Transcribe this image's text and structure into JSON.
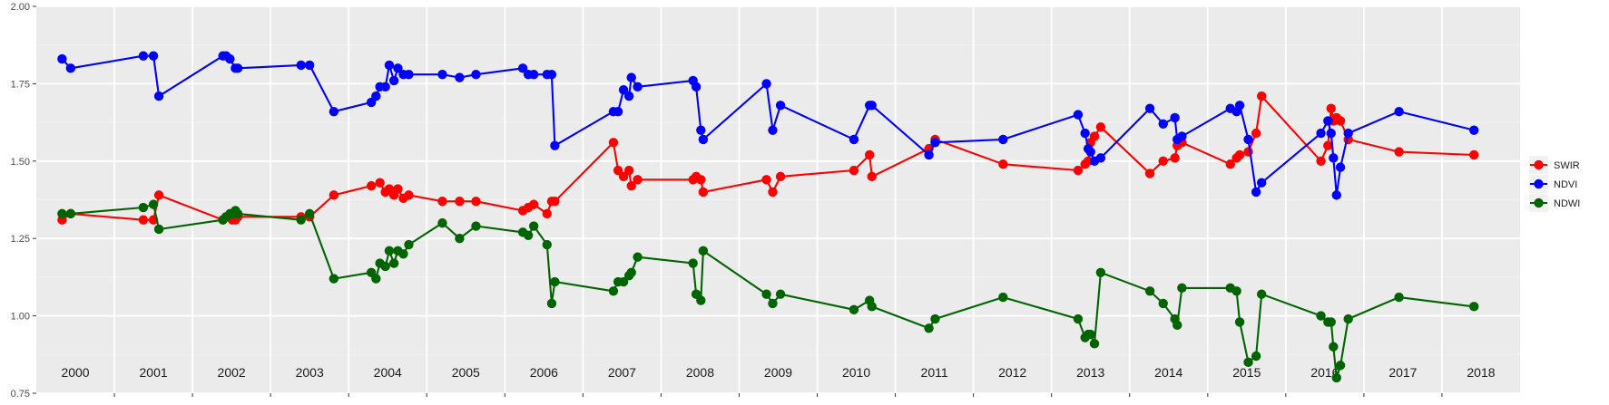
{
  "chart_data": {
    "type": "line",
    "title": "",
    "xlabel": "",
    "ylabel": "",
    "x_range": [
      2000.0,
      2019.0
    ],
    "ylim": [
      0.75,
      2.0
    ],
    "y_ticks": [
      "0.75",
      "1.00",
      "1.25",
      "1.50",
      "1.75",
      "2.00"
    ],
    "year_labels": [
      "2000",
      "2001",
      "2002",
      "2003",
      "2004",
      "2005",
      "2006",
      "2007",
      "2008",
      "2009",
      "2010",
      "2011",
      "2012",
      "2013",
      "2014",
      "2015",
      "2016",
      "2017",
      "2018"
    ],
    "grid": true,
    "legend_position": "right",
    "colors": {
      "panel_bg": "#ebebeb",
      "grid_major": "#ffffff",
      "grid_minor": "#f2f2f2",
      "tick_text": "#4d4d4d"
    },
    "series": [
      {
        "name": "SWIR",
        "color": "#ff0000",
        "x": [
          2000.33,
          2000.44,
          2001.37,
          2001.5,
          2001.57,
          2002.39,
          2002.48,
          2002.51,
          2002.55,
          2002.58,
          2003.39,
          2003.5,
          2003.81,
          2004.29,
          2004.4,
          2004.47,
          2004.52,
          2004.58,
          2004.63,
          2004.7,
          2004.77,
          2005.2,
          2005.42,
          2005.63,
          2006.23,
          2006.3,
          2006.37,
          2006.54,
          2006.6,
          2006.64,
          2007.39,
          2007.45,
          2007.52,
          2007.59,
          2007.62,
          2007.7,
          2008.41,
          2008.45,
          2008.51,
          2008.54,
          2009.35,
          2009.43,
          2009.53,
          2010.47,
          2010.67,
          2010.7,
          2011.43,
          2011.51,
          2012.38,
          2013.34,
          2013.43,
          2013.47,
          2013.5,
          2013.55,
          2013.63,
          2014.26,
          2014.43,
          2014.58,
          2014.61,
          2014.67,
          2015.29,
          2015.37,
          2015.41,
          2015.52,
          2015.62,
          2015.69,
          2016.45,
          2016.54,
          2016.58,
          2016.61,
          2016.65,
          2016.7,
          2016.8,
          2017.45,
          2018.41
        ],
        "y": [
          1.31,
          1.33,
          1.31,
          1.31,
          1.39,
          1.31,
          1.32,
          1.31,
          1.31,
          1.32,
          1.32,
          1.32,
          1.39,
          1.42,
          1.43,
          1.4,
          1.41,
          1.39,
          1.41,
          1.38,
          1.39,
          1.37,
          1.37,
          1.37,
          1.34,
          1.35,
          1.36,
          1.33,
          1.37,
          1.37,
          1.56,
          1.47,
          1.45,
          1.47,
          1.42,
          1.44,
          1.44,
          1.45,
          1.44,
          1.4,
          1.44,
          1.4,
          1.45,
          1.47,
          1.52,
          1.45,
          1.54,
          1.57,
          1.49,
          1.47,
          1.49,
          1.5,
          1.56,
          1.58,
          1.61,
          1.46,
          1.5,
          1.51,
          1.55,
          1.56,
          1.49,
          1.51,
          1.52,
          1.53,
          1.59,
          1.71,
          1.5,
          1.55,
          1.67,
          1.63,
          1.64,
          1.63,
          1.57,
          1.53,
          1.52
        ]
      },
      {
        "name": "NDVI",
        "color": "#0000ff",
        "x": [
          2000.33,
          2000.44,
          2001.37,
          2001.5,
          2001.57,
          2002.39,
          2002.43,
          2002.48,
          2002.55,
          2002.58,
          2003.39,
          2003.5,
          2003.81,
          2004.29,
          2004.35,
          2004.4,
          2004.47,
          2004.52,
          2004.58,
          2004.63,
          2004.7,
          2004.77,
          2005.2,
          2005.42,
          2005.63,
          2006.23,
          2006.3,
          2006.37,
          2006.54,
          2006.6,
          2006.64,
          2007.39,
          2007.45,
          2007.52,
          2007.59,
          2007.62,
          2007.7,
          2008.41,
          2008.45,
          2008.51,
          2008.54,
          2009.35,
          2009.43,
          2009.53,
          2010.47,
          2010.67,
          2010.7,
          2011.43,
          2011.51,
          2012.38,
          2013.34,
          2013.43,
          2013.47,
          2013.5,
          2013.55,
          2013.63,
          2014.26,
          2014.43,
          2014.58,
          2014.61,
          2014.67,
          2015.29,
          2015.37,
          2015.41,
          2015.52,
          2015.62,
          2015.69,
          2016.45,
          2016.54,
          2016.58,
          2016.61,
          2016.65,
          2016.7,
          2016.8,
          2017.45,
          2018.41
        ],
        "y": [
          1.83,
          1.8,
          1.84,
          1.84,
          1.71,
          1.84,
          1.84,
          1.83,
          1.8,
          1.8,
          1.81,
          1.81,
          1.66,
          1.69,
          1.71,
          1.74,
          1.74,
          1.81,
          1.76,
          1.8,
          1.78,
          1.78,
          1.78,
          1.77,
          1.78,
          1.8,
          1.78,
          1.78,
          1.78,
          1.78,
          1.55,
          1.66,
          1.66,
          1.73,
          1.71,
          1.77,
          1.74,
          1.76,
          1.74,
          1.6,
          1.57,
          1.75,
          1.6,
          1.68,
          1.57,
          1.68,
          1.68,
          1.52,
          1.56,
          1.57,
          1.65,
          1.59,
          1.54,
          1.53,
          1.5,
          1.51,
          1.67,
          1.62,
          1.64,
          1.57,
          1.58,
          1.67,
          1.66,
          1.68,
          1.57,
          1.4,
          1.43,
          1.59,
          1.63,
          1.59,
          1.51,
          1.39,
          1.48,
          1.59,
          1.66,
          1.6
        ]
      },
      {
        "name": "NDWI",
        "color": "#006400",
        "x": [
          2000.33,
          2000.44,
          2001.37,
          2001.5,
          2001.57,
          2002.39,
          2002.43,
          2002.48,
          2002.51,
          2002.55,
          2002.58,
          2003.39,
          2003.5,
          2003.81,
          2004.29,
          2004.35,
          2004.4,
          2004.47,
          2004.52,
          2004.58,
          2004.63,
          2004.7,
          2004.77,
          2005.2,
          2005.42,
          2005.63,
          2006.23,
          2006.3,
          2006.37,
          2006.54,
          2006.6,
          2006.64,
          2007.39,
          2007.45,
          2007.52,
          2007.59,
          2007.62,
          2007.7,
          2008.41,
          2008.45,
          2008.51,
          2008.54,
          2009.35,
          2009.43,
          2009.53,
          2010.47,
          2010.67,
          2010.7,
          2011.43,
          2011.51,
          2012.38,
          2013.34,
          2013.43,
          2013.47,
          2013.5,
          2013.55,
          2013.63,
          2014.26,
          2014.43,
          2014.58,
          2014.61,
          2014.67,
          2015.29,
          2015.37,
          2015.41,
          2015.52,
          2015.62,
          2015.69,
          2016.45,
          2016.54,
          2016.58,
          2016.61,
          2016.65,
          2016.7,
          2016.8,
          2017.45,
          2018.41
        ],
        "y": [
          1.33,
          1.33,
          1.35,
          1.36,
          1.28,
          1.31,
          1.32,
          1.33,
          1.33,
          1.34,
          1.33,
          1.31,
          1.33,
          1.12,
          1.14,
          1.12,
          1.17,
          1.16,
          1.21,
          1.17,
          1.21,
          1.2,
          1.23,
          1.3,
          1.25,
          1.29,
          1.27,
          1.26,
          1.29,
          1.23,
          1.04,
          1.11,
          1.08,
          1.11,
          1.11,
          1.13,
          1.14,
          1.19,
          1.17,
          1.07,
          1.05,
          1.21,
          1.07,
          1.04,
          1.07,
          1.02,
          1.05,
          1.03,
          0.96,
          0.99,
          1.06,
          0.99,
          0.93,
          0.94,
          0.94,
          0.91,
          1.14,
          1.08,
          1.04,
          0.99,
          0.97,
          1.09,
          1.09,
          1.08,
          0.98,
          0.85,
          0.87,
          1.07,
          1.0,
          0.98,
          0.98,
          0.9,
          0.8,
          0.84,
          0.99,
          1.06,
          1.03
        ]
      }
    ]
  }
}
